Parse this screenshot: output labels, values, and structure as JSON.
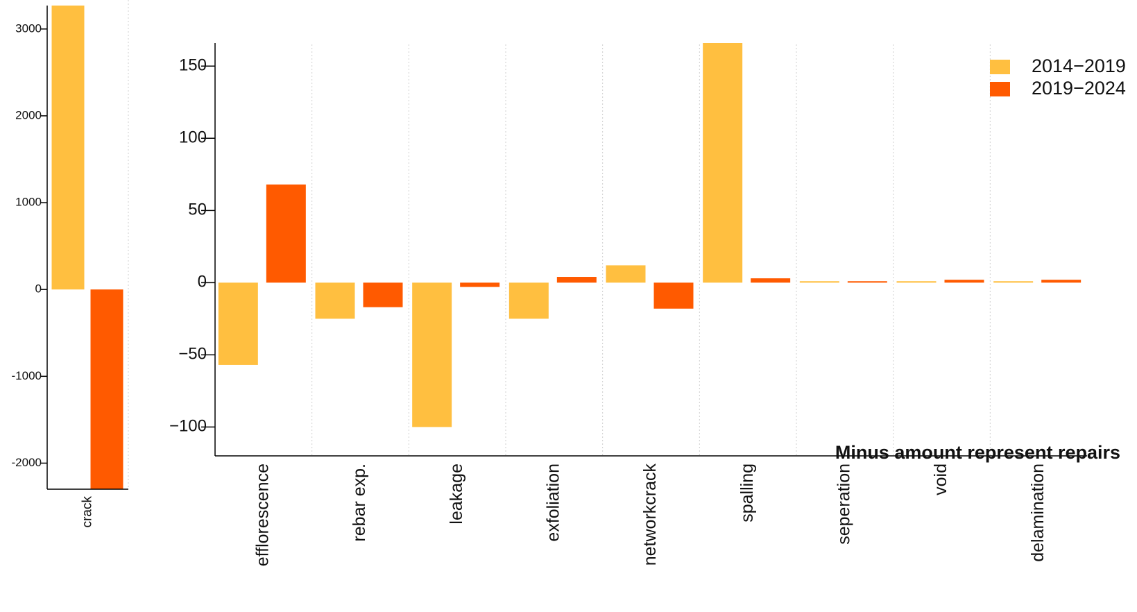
{
  "colors": {
    "series_a": "#FFBF40",
    "series_b": "#FF5A00",
    "axis": "#000000",
    "grid": "#cfcfcf"
  },
  "legend": {
    "items": [
      "2014−2019",
      "2019−2024"
    ],
    "placement": "top-right"
  },
  "annotation": "Minus amount represent repairs",
  "chart_data": [
    {
      "type": "bar",
      "title": "",
      "xlabel": "",
      "ylabel": "",
      "categories": [
        "crack"
      ],
      "series": [
        {
          "name": "2014−2019",
          "values": [
            3270
          ]
        },
        {
          "name": "2019−2024",
          "values": [
            -2300
          ]
        }
      ],
      "ylim": [
        -2300,
        3270
      ],
      "yticks": [
        -2000,
        -1000,
        0,
        1000,
        2000,
        3000
      ],
      "ytick_labels": [
        "-2000",
        "-1000",
        "0",
        "1000",
        "2000",
        "3000"
      ],
      "grid": "vertical dotted"
    },
    {
      "type": "bar",
      "title": "",
      "xlabel": "",
      "ylabel": "",
      "categories": [
        "efflorescence",
        "rebar exp.",
        "leakage",
        "exfoliation",
        "networkcrack",
        "spalling",
        "seperation",
        "void",
        "delamination"
      ],
      "series": [
        {
          "name": "2014−2019",
          "values": [
            -57,
            -25,
            -100,
            -25,
            12,
            166,
            1,
            1,
            1
          ]
        },
        {
          "name": "2019−2024",
          "values": [
            68,
            -17,
            -3,
            4,
            -18,
            3,
            1,
            2,
            2
          ]
        }
      ],
      "ylim": [
        -120,
        166
      ],
      "yticks": [
        -100,
        -50,
        0,
        50,
        100,
        150
      ],
      "ytick_labels": [
        "−100",
        "−50",
        "0",
        "50",
        "100",
        "150"
      ],
      "grid": "vertical dotted"
    }
  ]
}
